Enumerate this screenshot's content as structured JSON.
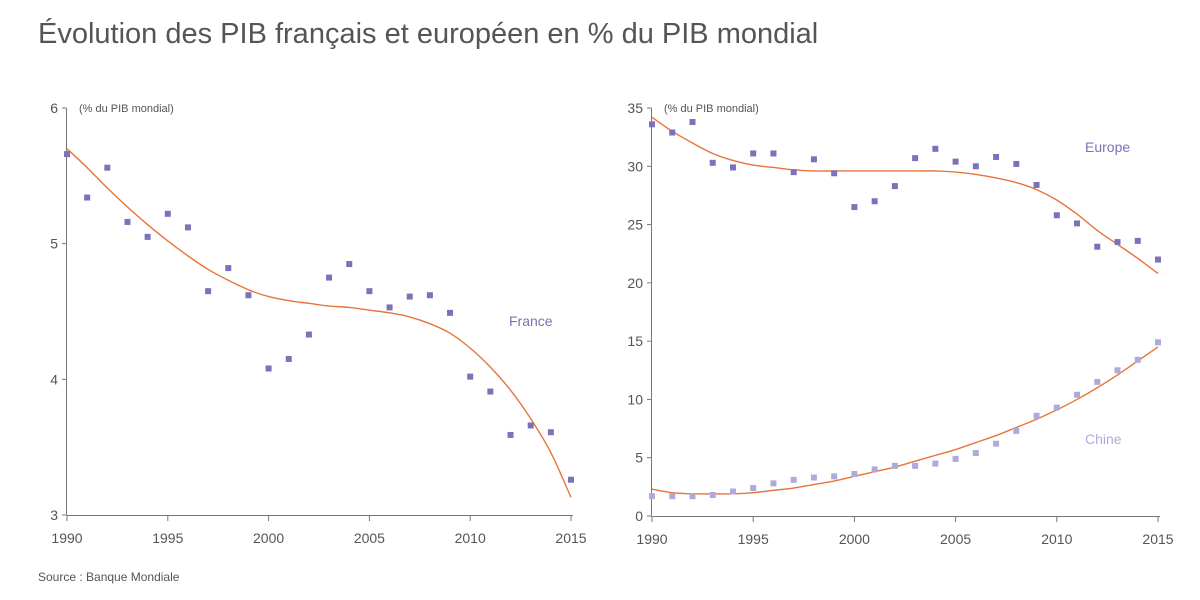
{
  "title": "Évolution des PIB français et européen en % du PIB mondial",
  "source": "Source : Banque Mondiale",
  "colors": {
    "point": "#7b72b8",
    "point_light": "#b0aadb",
    "trend": "#e8743a",
    "axis": "#777777",
    "text": "#555555"
  },
  "chart_data": [
    {
      "type": "scatter",
      "title": "France",
      "unit_label": "(% du PIB mondial)",
      "xlim": [
        1990,
        2015
      ],
      "ylim": [
        3,
        6
      ],
      "xticks": [
        1990,
        1995,
        2000,
        2005,
        2010,
        2015
      ],
      "yticks": [
        3,
        4,
        5,
        6
      ],
      "series": [
        {
          "name": "France",
          "label": "France",
          "color": "#7b72b8",
          "x": [
            1990,
            1991,
            1992,
            1993,
            1994,
            1995,
            1996,
            1997,
            1998,
            1999,
            2000,
            2001,
            2002,
            2003,
            2004,
            2005,
            2006,
            2007,
            2008,
            2009,
            2010,
            2011,
            2012,
            2013,
            2014,
            2015
          ],
          "y": [
            5.66,
            5.34,
            5.56,
            5.16,
            5.05,
            5.22,
            5.12,
            4.65,
            4.82,
            4.62,
            4.08,
            4.15,
            4.33,
            4.75,
            4.85,
            4.65,
            4.53,
            4.61,
            4.62,
            4.49,
            4.02,
            3.91,
            3.59,
            3.66,
            3.61,
            3.26
          ],
          "trend": {
            "x": [
              1990,
              1991,
              1992,
              1993,
              1994,
              1995,
              1996,
              1997,
              1998,
              1999,
              2000,
              2001,
              2002,
              2003,
              2004,
              2005,
              2006,
              2007,
              2008,
              2009,
              2010,
              2011,
              2012,
              2013,
              2014,
              2015
            ],
            "y": [
              5.7,
              5.56,
              5.41,
              5.27,
              5.14,
              5.02,
              4.91,
              4.81,
              4.73,
              4.66,
              4.61,
              4.58,
              4.56,
              4.54,
              4.53,
              4.51,
              4.49,
              4.46,
              4.41,
              4.34,
              4.23,
              4.09,
              3.92,
              3.71,
              3.46,
              3.13
            ]
          }
        }
      ]
    },
    {
      "type": "scatter",
      "title": "Europe / Chine",
      "unit_label": "(% du PIB mondial)",
      "xlim": [
        1990,
        2015
      ],
      "ylim": [
        0,
        35
      ],
      "xticks": [
        1990,
        1995,
        2000,
        2005,
        2010,
        2015
      ],
      "yticks": [
        0,
        5,
        10,
        15,
        20,
        25,
        30,
        35
      ],
      "series": [
        {
          "name": "Europe",
          "label": "Europe",
          "color": "#7b72b8",
          "x": [
            1990,
            1991,
            1992,
            1993,
            1994,
            1995,
            1996,
            1997,
            1998,
            1999,
            2000,
            2001,
            2002,
            2003,
            2004,
            2005,
            2006,
            2007,
            2008,
            2009,
            2010,
            2011,
            2012,
            2013,
            2014,
            2015
          ],
          "y": [
            33.6,
            32.9,
            33.8,
            30.3,
            29.9,
            31.1,
            31.1,
            29.5,
            30.6,
            29.4,
            26.5,
            27.0,
            28.3,
            30.7,
            31.5,
            30.4,
            30.0,
            30.8,
            30.2,
            28.4,
            25.8,
            25.1,
            23.1,
            23.5,
            23.6,
            22.0
          ],
          "trend": {
            "x": [
              1990,
              1991,
              1992,
              1993,
              1994,
              1995,
              1996,
              1997,
              1998,
              1999,
              2000,
              2001,
              2002,
              2003,
              2004,
              2005,
              2006,
              2007,
              2008,
              2009,
              2010,
              2011,
              2012,
              2013,
              2014,
              2015
            ],
            "y": [
              34.2,
              33.0,
              32.0,
              31.1,
              30.5,
              30.1,
              29.9,
              29.7,
              29.6,
              29.6,
              29.6,
              29.6,
              29.6,
              29.6,
              29.6,
              29.5,
              29.3,
              29.0,
              28.6,
              28.0,
              27.1,
              25.9,
              24.5,
              23.3,
              22.1,
              20.8
            ]
          }
        },
        {
          "name": "Chine",
          "label": "Chine",
          "color": "#b0aadb",
          "x": [
            1990,
            1991,
            1992,
            1993,
            1994,
            1995,
            1996,
            1997,
            1998,
            1999,
            2000,
            2001,
            2002,
            2003,
            2004,
            2005,
            2006,
            2007,
            2008,
            2009,
            2010,
            2011,
            2012,
            2013,
            2014,
            2015
          ],
          "y": [
            1.7,
            1.7,
            1.7,
            1.8,
            2.1,
            2.4,
            2.8,
            3.1,
            3.3,
            3.4,
            3.6,
            4.0,
            4.3,
            4.3,
            4.5,
            4.9,
            5.4,
            6.2,
            7.3,
            8.6,
            9.3,
            10.4,
            11.5,
            12.5,
            13.4,
            14.9
          ],
          "trend": {
            "x": [
              1990,
              1991,
              1992,
              1993,
              1994,
              1995,
              1996,
              1997,
              1998,
              1999,
              2000,
              2001,
              2002,
              2003,
              2004,
              2005,
              2006,
              2007,
              2008,
              2009,
              2010,
              2011,
              2012,
              2013,
              2014,
              2015
            ],
            "y": [
              2.3,
              2.0,
              1.9,
              1.9,
              1.9,
              2.0,
              2.2,
              2.4,
              2.7,
              3.0,
              3.4,
              3.8,
              4.2,
              4.7,
              5.2,
              5.7,
              6.3,
              6.9,
              7.6,
              8.3,
              9.1,
              10.0,
              11.0,
              12.1,
              13.3,
              14.5
            ]
          }
        }
      ]
    }
  ]
}
